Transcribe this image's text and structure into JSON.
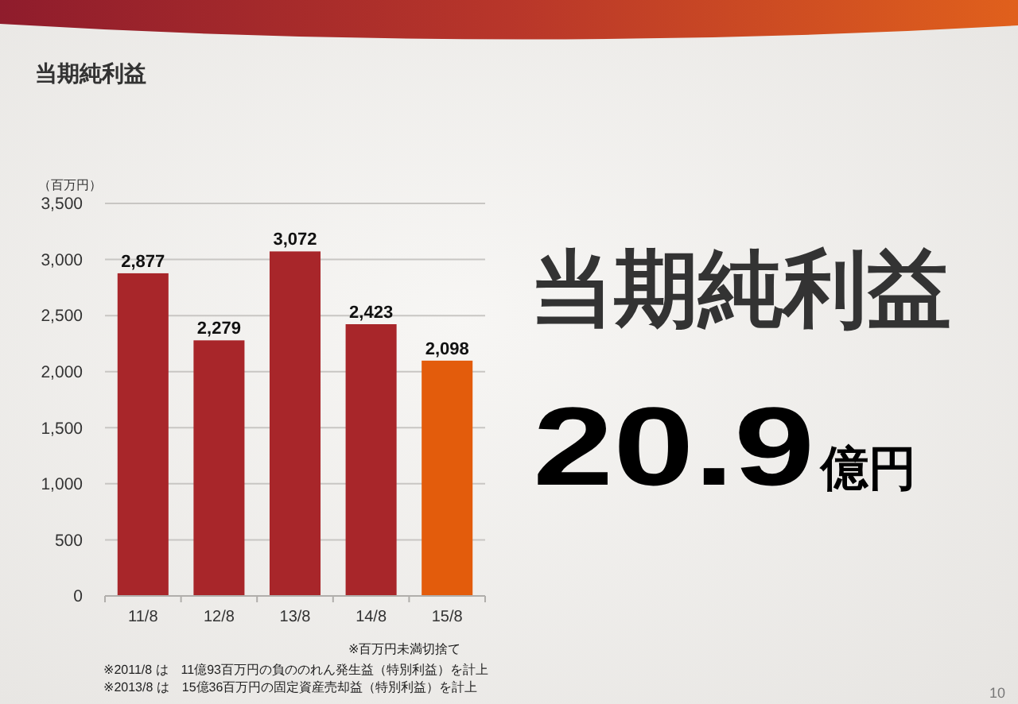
{
  "chart_data": [
    {
      "type": "bar",
      "title": "当期純利益",
      "ylabel": "（百万円）",
      "categories": [
        "11/8",
        "12/8",
        "13/8",
        "14/8",
        "15/8"
      ],
      "values": [
        2877,
        2279,
        3072,
        2423,
        2098
      ],
      "colors": [
        "#a8262a",
        "#a8262a",
        "#a8262a",
        "#a8262a",
        "#e35c0c"
      ],
      "value_labels": [
        "2,877",
        "2,279",
        "3,072",
        "2,423",
        "2,098"
      ],
      "ylim": [
        0,
        3500
      ],
      "yticks": [
        0,
        500,
        {
          "value": 1000,
          "label": "1,000"
        },
        {
          "value": 1500,
          "label": "1,500"
        },
        {
          "value": 2000,
          "label": "2,000"
        },
        {
          "value": 2500,
          "label": "2,500"
        },
        {
          "value": 3000,
          "label": "3,000"
        },
        {
          "value": 3500,
          "label": "3,500"
        }
      ],
      "grid": "y",
      "annotations": [
        "※百万円未満切捨て",
        "※2011/8 は　11億93百万円の負ののれん発生益（特別利益）を計上",
        "※2013/8 は　15億36百万円の固定資産売却益（特別利益）を計上",
        "10"
      ]
    },
    {
      "type": "other",
      "title": "当期純利益",
      "annotations": [
        "20.9",
        "億円"
      ]
    }
  ]
}
